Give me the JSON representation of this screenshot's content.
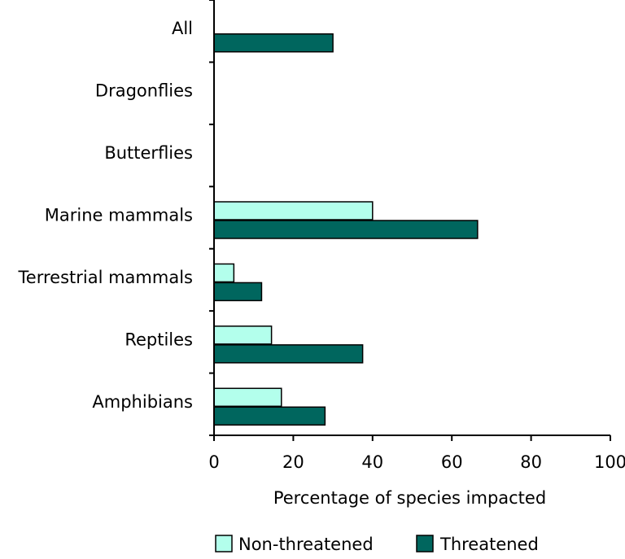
{
  "colors": {
    "non_threatened": "#b3ffec",
    "threatened": "#00665e",
    "axis": "#000000",
    "bar_stroke": "#000000"
  },
  "chart_data": {
    "type": "bar",
    "orientation": "horizontal",
    "categories": [
      "All",
      "Dragonflies",
      "Butterflies",
      "Marine mammals",
      "Terrestrial mammals",
      "Reptiles",
      "Amphibians"
    ],
    "series": [
      {
        "name": "Non-threatened",
        "values": [
          null,
          null,
          null,
          40,
          5,
          14.5,
          17
        ]
      },
      {
        "name": "Threatened",
        "values": [
          30,
          null,
          null,
          66.5,
          12,
          37.5,
          28
        ]
      }
    ],
    "xlabel": "Percentage of species impacted",
    "ylabel": "",
    "xlim": [
      0,
      100
    ],
    "xticks": [
      "0",
      "20",
      "40",
      "60",
      "80",
      "100"
    ],
    "grid": false,
    "legend_position": "bottom"
  }
}
